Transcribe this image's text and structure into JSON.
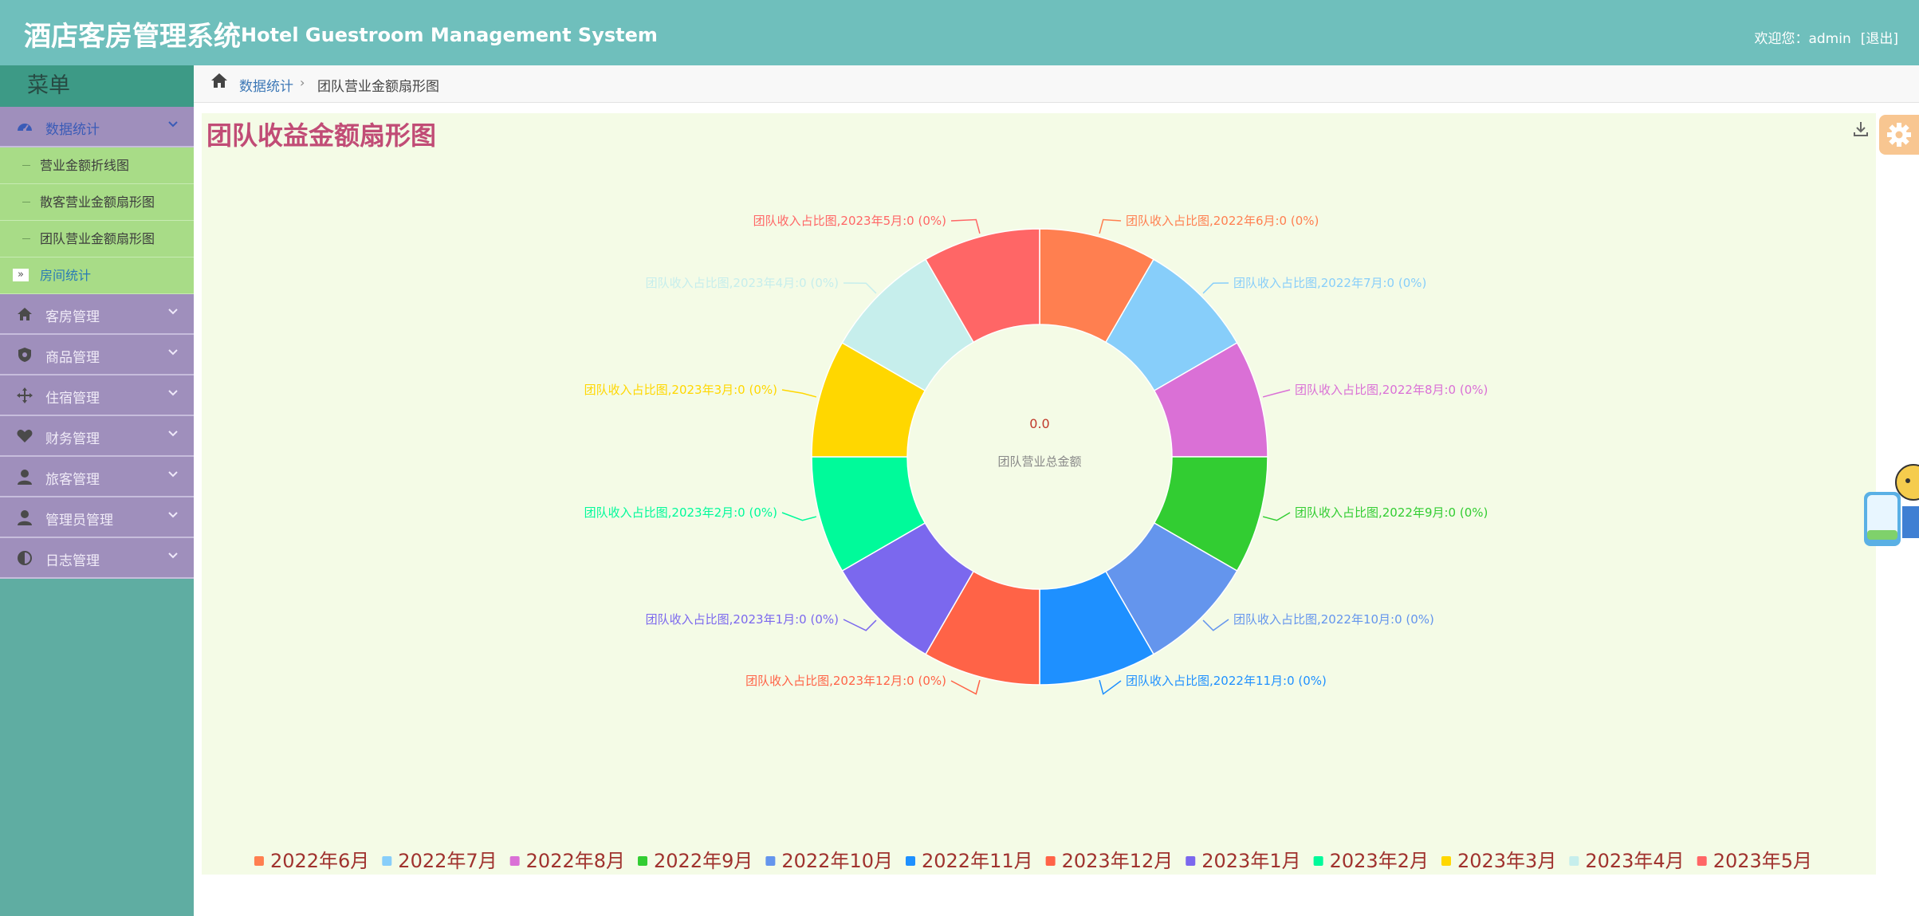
{
  "header": {
    "title": "酒店客房管理系统",
    "subtitle": "Hotel Guestroom Management System",
    "welcome": "欢迎您：admin",
    "logout": "[退出]"
  },
  "sidebar": {
    "menu_title": "菜单",
    "groups": [
      {
        "label": "数据统计",
        "icon": "dashboard-icon",
        "open": true,
        "items": [
          "营业金额折线图",
          "散客营业金额扇形图",
          "团队营业金额扇形图"
        ]
      },
      {
        "label": "房间统计"
      },
      {
        "label": "客房管理",
        "icon": "home-icon"
      },
      {
        "label": "商品管理",
        "icon": "shield-icon"
      },
      {
        "label": "住宿管理",
        "icon": "move-icon"
      },
      {
        "label": "财务管理",
        "icon": "heart-icon"
      },
      {
        "label": "旅客管理",
        "icon": "user-icon"
      },
      {
        "label": "管理员管理",
        "icon": "user-icon"
      },
      {
        "label": "日志管理",
        "icon": "half-circle-icon"
      }
    ]
  },
  "breadcrumb": {
    "home_icon": "home-icon",
    "crumb1": "数据统计",
    "separator": "›",
    "crumb2": "团队营业金额扇形图"
  },
  "page": {
    "title": "团队收益金额扇形图"
  },
  "chart_data": {
    "type": "pie",
    "center_value": "0.0",
    "center_label": "团队营业总金额",
    "series_name": "团队收入占比图",
    "slices": [
      {
        "label": "2022年6月",
        "value": 0,
        "percent": "0%",
        "color": "#ff7f50"
      },
      {
        "label": "2022年7月",
        "value": 0,
        "percent": "0%",
        "color": "#87cefa"
      },
      {
        "label": "2022年8月",
        "value": 0,
        "percent": "0%",
        "color": "#da70d6"
      },
      {
        "label": "2022年9月",
        "value": 0,
        "percent": "0%",
        "color": "#32cd32"
      },
      {
        "label": "2022年10月",
        "value": 0,
        "percent": "0%",
        "color": "#6495ed"
      },
      {
        "label": "2022年11月",
        "value": 0,
        "percent": "0%",
        "color": "#1e90ff"
      },
      {
        "label": "2023年12月",
        "value": 0,
        "percent": "0%",
        "color": "#ff6347"
      },
      {
        "label": "2023年1月",
        "value": 0,
        "percent": "0%",
        "color": "#7b68ee"
      },
      {
        "label": "2023年2月",
        "value": 0,
        "percent": "0%",
        "color": "#00fa9a"
      },
      {
        "label": "2023年3月",
        "value": 0,
        "percent": "0%",
        "color": "#ffd700"
      },
      {
        "label": "2023年4月",
        "value": 0,
        "percent": "0%",
        "color": "#c6eeec"
      },
      {
        "label": "2023年5月",
        "value": 0,
        "percent": "0%",
        "color": "#ff6666"
      }
    ],
    "legend_position": "bottom"
  }
}
